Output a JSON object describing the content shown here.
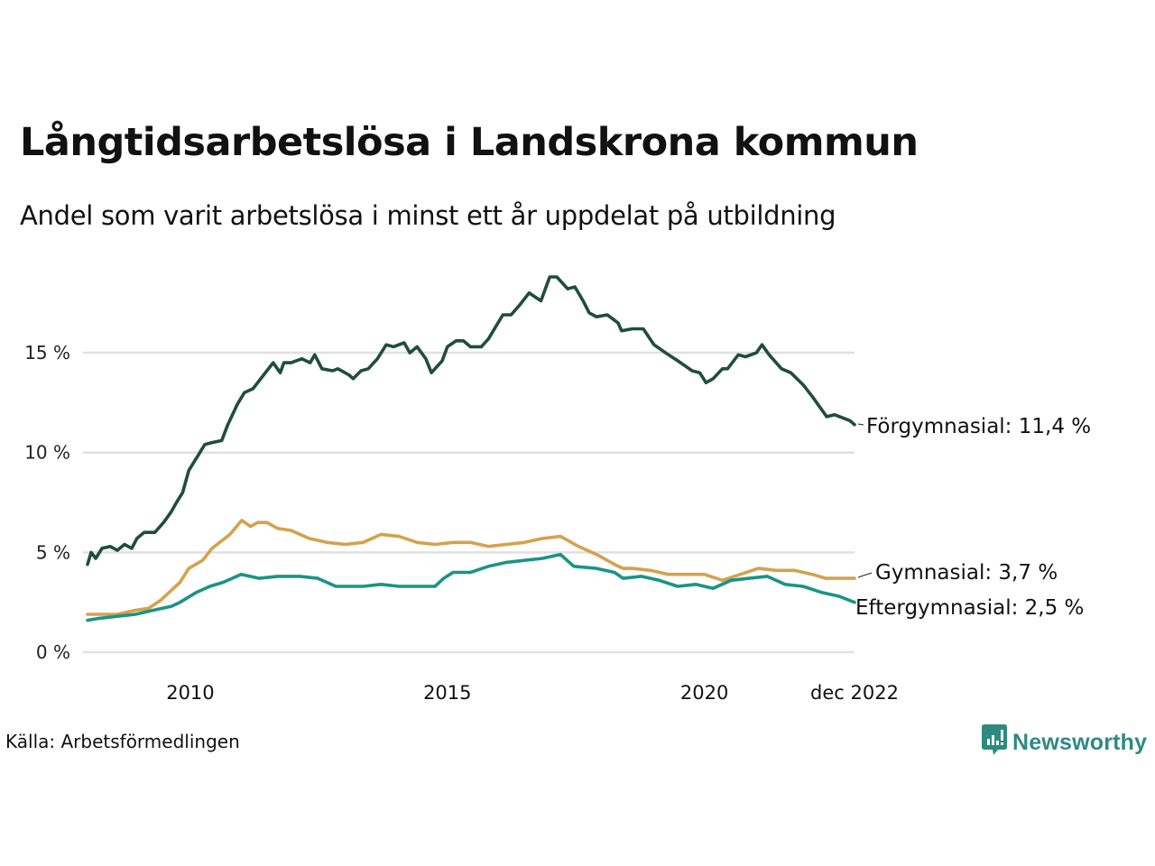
{
  "header": {
    "title": "Långtidsarbetslösa i Landskrona kommun",
    "subtitle": "Andel som varit arbetslösa i minst ett år uppdelat på utbildning"
  },
  "footer": {
    "source": "Källa: Arbetsförmedlingen",
    "brand": "Newsworthy",
    "brand_icon": "newsworthy-logo-icon",
    "brand_color": "#2e8a80"
  },
  "chart_data": {
    "type": "line",
    "title": "Långtidsarbetslösa i Landskrona kommun",
    "subtitle": "Andel som varit arbetslösa i minst ett år uppdelat på utbildning",
    "xlabel": "",
    "ylabel": "",
    "xlim": [
      2008.0,
      2022.92
    ],
    "ylim": [
      0,
      19
    ],
    "grid": true,
    "legend": "direct-labels-right",
    "y_ticks": [
      0,
      5,
      10,
      15
    ],
    "y_tick_labels": [
      "0 %",
      "5 %",
      "10 %",
      "15 %"
    ],
    "x_ticks": [
      2010,
      2015,
      2020,
      2022.92
    ],
    "x_tick_labels": [
      "2010",
      "2015",
      "2020",
      "dec 2022"
    ],
    "series": [
      {
        "name": "Förgymnasial",
        "label": "Förgymnasial: 11,4 %",
        "color": "#1f4d3f",
        "x": [
          2008.0,
          2008.07,
          2008.16,
          2008.28,
          2008.44,
          2008.58,
          2008.72,
          2008.86,
          2008.96,
          2009.1,
          2009.31,
          2009.48,
          2009.62,
          2009.73,
          2009.85,
          2009.97,
          2010.16,
          2010.28,
          2010.42,
          2010.61,
          2010.73,
          2010.91,
          2011.05,
          2011.22,
          2011.43,
          2011.61,
          2011.75,
          2011.82,
          2011.96,
          2012.17,
          2012.33,
          2012.42,
          2012.56,
          2012.77,
          2012.87,
          2013.08,
          2013.17,
          2013.32,
          2013.46,
          2013.64,
          2013.81,
          2013.95,
          2014.16,
          2014.27,
          2014.41,
          2014.58,
          2014.69,
          2014.9,
          2015.0,
          2015.17,
          2015.31,
          2015.45,
          2015.66,
          2015.8,
          2015.94,
          2016.08,
          2016.24,
          2016.41,
          2016.59,
          2016.82,
          2016.99,
          2017.13,
          2017.34,
          2017.48,
          2017.64,
          2017.76,
          2017.9,
          2018.11,
          2018.32,
          2018.39,
          2018.6,
          2018.81,
          2019.02,
          2019.3,
          2019.48,
          2019.76,
          2019.91,
          2020.03,
          2020.17,
          2020.35,
          2020.45,
          2020.66,
          2020.8,
          2021.01,
          2021.12,
          2021.26,
          2021.5,
          2021.68,
          2021.92,
          2022.1,
          2022.38,
          2022.53,
          2022.83,
          2022.92
        ],
        "values": [
          4.4,
          5.0,
          4.7,
          5.2,
          5.3,
          5.1,
          5.4,
          5.2,
          5.7,
          6.0,
          6.0,
          6.5,
          7.0,
          7.5,
          8.0,
          9.1,
          9.9,
          10.4,
          10.5,
          10.6,
          11.4,
          12.4,
          13.0,
          13.2,
          13.9,
          14.5,
          14.0,
          14.5,
          14.5,
          14.7,
          14.5,
          14.9,
          14.2,
          14.1,
          14.2,
          13.9,
          13.7,
          14.1,
          14.2,
          14.7,
          15.4,
          15.3,
          15.5,
          15.0,
          15.3,
          14.7,
          14.0,
          14.6,
          15.3,
          15.6,
          15.6,
          15.3,
          15.3,
          15.7,
          16.3,
          16.9,
          16.9,
          17.4,
          18.0,
          17.6,
          18.8,
          18.8,
          18.2,
          18.3,
          17.6,
          17.0,
          16.8,
          16.9,
          16.5,
          16.1,
          16.2,
          16.2,
          15.4,
          14.9,
          14.6,
          14.1,
          14.0,
          13.5,
          13.7,
          14.2,
          14.2,
          14.9,
          14.8,
          15.0,
          15.4,
          14.9,
          14.2,
          14.0,
          13.4,
          12.8,
          11.8,
          11.9,
          11.6,
          11.4
        ]
      },
      {
        "name": "Gymnasial",
        "label": "Gymnasial:  3,7 %",
        "color": "#d4a24c",
        "x": [
          2008.0,
          2008.23,
          2008.58,
          2008.93,
          2009.19,
          2009.42,
          2009.59,
          2009.8,
          2009.97,
          2010.24,
          2010.42,
          2010.52,
          2010.77,
          2011.0,
          2011.17,
          2011.31,
          2011.49,
          2011.7,
          2011.96,
          2012.31,
          2012.66,
          2013.01,
          2013.36,
          2013.71,
          2014.06,
          2014.41,
          2014.76,
          2015.11,
          2015.45,
          2015.8,
          2016.15,
          2016.5,
          2016.85,
          2017.2,
          2017.55,
          2017.9,
          2018.25,
          2018.42,
          2018.6,
          2018.95,
          2019.3,
          2019.65,
          2020.0,
          2020.35,
          2020.7,
          2021.05,
          2021.4,
          2021.75,
          2022.1,
          2022.36,
          2022.62,
          2022.92
        ],
        "values": [
          1.9,
          1.9,
          1.9,
          2.1,
          2.2,
          2.6,
          3.0,
          3.5,
          4.2,
          4.6,
          5.2,
          5.4,
          5.9,
          6.6,
          6.3,
          6.5,
          6.5,
          6.2,
          6.1,
          5.7,
          5.5,
          5.4,
          5.5,
          5.9,
          5.8,
          5.5,
          5.4,
          5.5,
          5.5,
          5.3,
          5.4,
          5.5,
          5.7,
          5.8,
          5.3,
          4.9,
          4.4,
          4.2,
          4.2,
          4.1,
          3.9,
          3.9,
          3.9,
          3.6,
          3.9,
          4.2,
          4.1,
          4.1,
          3.9,
          3.7,
          3.7,
          3.7
        ]
      },
      {
        "name": "Eftergymnasial",
        "label": "Eftergymnasial:  2,5 %",
        "color": "#1a9485",
        "x": [
          2008.0,
          2008.23,
          2008.58,
          2008.93,
          2009.28,
          2009.63,
          2009.8,
          2010.12,
          2010.38,
          2010.64,
          2010.99,
          2011.34,
          2011.7,
          2012.13,
          2012.48,
          2012.83,
          2013.36,
          2013.71,
          2014.06,
          2014.41,
          2014.76,
          2014.93,
          2015.11,
          2015.45,
          2015.8,
          2016.15,
          2016.5,
          2016.85,
          2017.2,
          2017.46,
          2017.9,
          2018.25,
          2018.42,
          2018.77,
          2019.12,
          2019.48,
          2019.83,
          2020.17,
          2020.52,
          2020.87,
          2021.22,
          2021.57,
          2021.92,
          2022.27,
          2022.62,
          2022.92
        ],
        "values": [
          1.6,
          1.7,
          1.8,
          1.9,
          2.1,
          2.3,
          2.5,
          3.0,
          3.3,
          3.5,
          3.9,
          3.7,
          3.8,
          3.8,
          3.7,
          3.3,
          3.3,
          3.4,
          3.3,
          3.3,
          3.3,
          3.7,
          4.0,
          4.0,
          4.3,
          4.5,
          4.6,
          4.7,
          4.9,
          4.3,
          4.2,
          4.0,
          3.7,
          3.8,
          3.6,
          3.3,
          3.4,
          3.2,
          3.6,
          3.7,
          3.8,
          3.4,
          3.3,
          3.0,
          2.8,
          2.5
        ]
      }
    ]
  }
}
